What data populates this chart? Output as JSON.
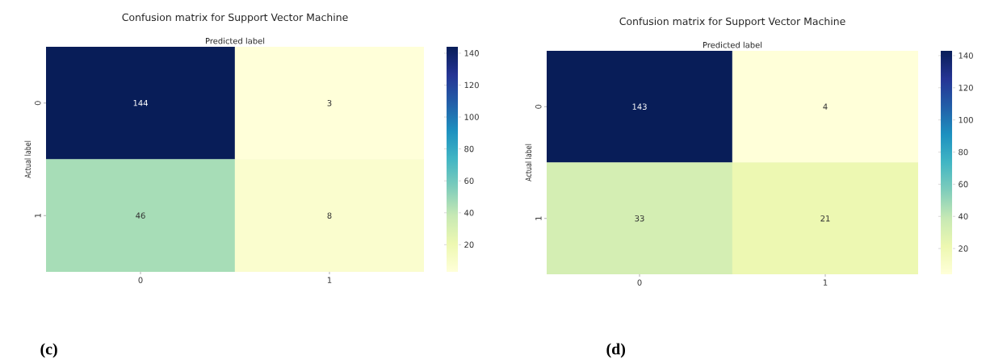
{
  "chart_data": [
    {
      "type": "heatmap",
      "title": "Confusion matrix for Support Vector Machine",
      "xlabel": "Predicted label",
      "ylabel": "Actual label",
      "categories": [
        "0",
        "1"
      ],
      "y_categories": [
        "0",
        "1"
      ],
      "cells": [
        [
          144,
          3
        ],
        [
          46,
          8
        ]
      ],
      "data_labels": true,
      "clim": [
        3,
        144
      ],
      "cticks": [
        20,
        40,
        60,
        80,
        100,
        120,
        140
      ],
      "annotations": [
        "(c)"
      ]
    },
    {
      "type": "heatmap",
      "title": "Confusion matrix for Support Vector Machine",
      "xlabel": "Predicted label",
      "ylabel": "Actual label",
      "categories": [
        "0",
        "1"
      ],
      "y_categories": [
        "0",
        "1"
      ],
      "cells": [
        [
          143,
          4
        ],
        [
          33,
          21
        ]
      ],
      "data_labels": true,
      "clim": [
        4,
        143
      ],
      "cticks": [
        20,
        40,
        60,
        80,
        100,
        120,
        140
      ],
      "annotations": [
        "(d)"
      ]
    }
  ]
}
